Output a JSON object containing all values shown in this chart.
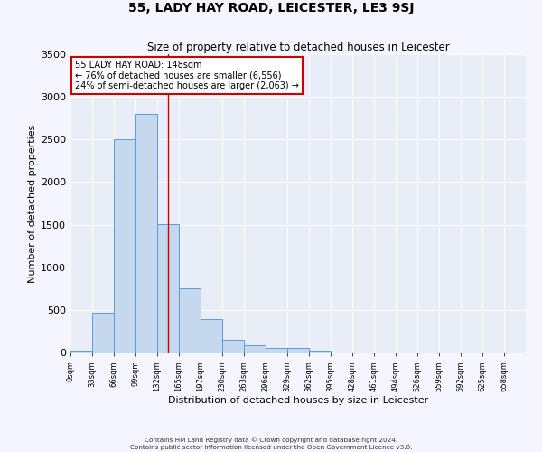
{
  "title": "55, LADY HAY ROAD, LEICESTER, LE3 9SJ",
  "subtitle": "Size of property relative to detached houses in Leicester",
  "xlabel": "Distribution of detached houses by size in Leicester",
  "ylabel": "Number of detached properties",
  "bar_left_edges": [
    0,
    33,
    66,
    99,
    132,
    165,
    198,
    231,
    264,
    297,
    330,
    363,
    396,
    429,
    462,
    495,
    528,
    561,
    594,
    627
  ],
  "bar_heights": [
    25,
    470,
    2500,
    2800,
    1510,
    750,
    390,
    145,
    80,
    50,
    50,
    25,
    0,
    0,
    0,
    0,
    0,
    0,
    0,
    0
  ],
  "bin_width": 33,
  "bar_color": "#c5d8ed",
  "bar_edge_color": "#5b9bd5",
  "bar_alpha": 1.0,
  "vline_x": 148,
  "vline_color": "#cc0000",
  "annotation_line1": "55 LADY HAY ROAD: 148sqm",
  "annotation_line2": "← 76% of detached houses are smaller (6,556)",
  "annotation_line3": "24% of semi-detached houses are larger (2,063) →",
  "annotation_box_color": "#cc0000",
  "tick_labels": [
    "0sqm",
    "33sqm",
    "66sqm",
    "99sqm",
    "132sqm",
    "165sqm",
    "197sqm",
    "230sqm",
    "263sqm",
    "296sqm",
    "329sqm",
    "362sqm",
    "395sqm",
    "428sqm",
    "461sqm",
    "494sqm",
    "526sqm",
    "559sqm",
    "592sqm",
    "625sqm",
    "658sqm"
  ],
  "ylim": [
    0,
    3500
  ],
  "yticks": [
    0,
    500,
    1000,
    1500,
    2000,
    2500,
    3000,
    3500
  ],
  "plot_bg_color": "#e8edf8",
  "fig_bg_color": "#f5f5ff",
  "footer1": "Contains HM Land Registry data © Crown copyright and database right 2024.",
  "footer2": "Contains public sector information licensed under the Open Government Licence v3.0."
}
